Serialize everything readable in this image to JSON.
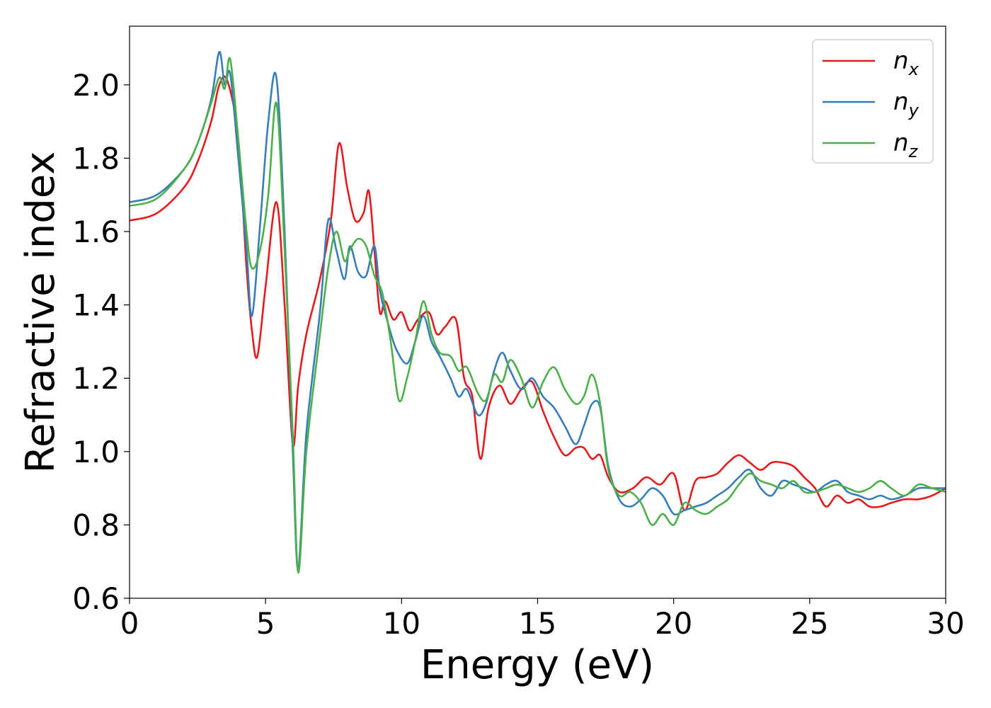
{
  "chart_data": {
    "type": "line",
    "title": "",
    "xlabel": "Energy (eV)",
    "ylabel": "Refractive index",
    "xlim": [
      0,
      30
    ],
    "ylim": [
      0.6,
      2.16
    ],
    "xticks": [
      0,
      5,
      10,
      15,
      20,
      25,
      30
    ],
    "xtick_labels": [
      "0",
      "5",
      "10",
      "15",
      "20",
      "25",
      "30"
    ],
    "yticks": [
      0.6,
      0.8,
      1.0,
      1.2,
      1.4,
      1.6,
      1.8,
      2.0
    ],
    "ytick_labels": [
      "0.6",
      "0.8",
      "1.0",
      "1.2",
      "1.4",
      "1.6",
      "1.8",
      "2.0"
    ],
    "grid": false,
    "legend_position": "top-right",
    "series": [
      {
        "name": "n",
        "subscript": "x",
        "color": "#e41a1c",
        "x": [
          0,
          1,
          2,
          2.5,
          3,
          3.3,
          3.6,
          4.0,
          4.3,
          4.5,
          4.7,
          5.0,
          5.4,
          5.7,
          6.0,
          6.2,
          6.5,
          7.0,
          7.4,
          7.7,
          8.0,
          8.3,
          8.6,
          8.8,
          9.0,
          9.2,
          9.4,
          9.7,
          10.0,
          10.3,
          10.6,
          11.0,
          11.3,
          11.6,
          12.0,
          12.3,
          12.6,
          12.9,
          13.2,
          13.6,
          14.0,
          14.4,
          14.8,
          15.2,
          15.6,
          16.0,
          16.4,
          16.7,
          17.0,
          17.3,
          17.6,
          18.0,
          18.5,
          19.0,
          19.5,
          20.0,
          20.4,
          20.8,
          21.2,
          21.6,
          22.0,
          22.4,
          22.8,
          23.2,
          23.6,
          24.0,
          24.4,
          24.8,
          25.2,
          25.6,
          26.0,
          26.4,
          26.8,
          27.2,
          27.6,
          28.0,
          28.5,
          29.0,
          29.5,
          30.0
        ],
        "y": [
          1.63,
          1.65,
          1.72,
          1.79,
          1.9,
          2.0,
          2.01,
          1.85,
          1.5,
          1.33,
          1.26,
          1.45,
          1.68,
          1.4,
          1.02,
          1.18,
          1.32,
          1.47,
          1.63,
          1.84,
          1.72,
          1.63,
          1.65,
          1.71,
          1.55,
          1.38,
          1.41,
          1.36,
          1.38,
          1.33,
          1.36,
          1.38,
          1.32,
          1.34,
          1.36,
          1.2,
          1.15,
          0.98,
          1.12,
          1.18,
          1.13,
          1.17,
          1.19,
          1.11,
          1.04,
          0.99,
          1.01,
          1.01,
          0.98,
          0.99,
          0.93,
          0.89,
          0.9,
          0.93,
          0.91,
          0.94,
          0.84,
          0.92,
          0.93,
          0.94,
          0.97,
          0.99,
          0.97,
          0.95,
          0.97,
          0.97,
          0.96,
          0.93,
          0.9,
          0.85,
          0.88,
          0.86,
          0.87,
          0.85,
          0.85,
          0.86,
          0.87,
          0.87,
          0.88,
          0.9
        ]
      },
      {
        "name": "n",
        "subscript": "y",
        "color": "#377eb8",
        "x": [
          0,
          1,
          2,
          2.5,
          3,
          3.3,
          3.5,
          3.7,
          4.0,
          4.3,
          4.5,
          4.8,
          5.1,
          5.4,
          5.7,
          6.0,
          6.2,
          6.5,
          7.0,
          7.3,
          7.6,
          7.9,
          8.1,
          8.4,
          8.7,
          9.0,
          9.2,
          9.5,
          9.8,
          10.2,
          10.5,
          10.8,
          11.1,
          11.4,
          11.8,
          12.1,
          12.4,
          12.8,
          13.1,
          13.4,
          13.7,
          14.0,
          14.4,
          14.8,
          15.2,
          15.6,
          16.0,
          16.4,
          16.7,
          17.0,
          17.3,
          17.6,
          18.0,
          18.4,
          18.8,
          19.2,
          19.6,
          20.0,
          20.4,
          20.8,
          21.2,
          21.6,
          22.0,
          22.4,
          22.8,
          23.2,
          23.6,
          24.0,
          24.4,
          24.8,
          25.2,
          25.6,
          26.0,
          26.4,
          26.8,
          27.2,
          27.6,
          28.0,
          28.5,
          29.0,
          29.5,
          30.0
        ],
        "y": [
          1.68,
          1.7,
          1.77,
          1.84,
          1.96,
          2.09,
          2.0,
          2.03,
          1.8,
          1.55,
          1.37,
          1.62,
          1.9,
          2.02,
          1.6,
          1.0,
          0.68,
          1.05,
          1.38,
          1.63,
          1.55,
          1.47,
          1.56,
          1.49,
          1.48,
          1.56,
          1.44,
          1.35,
          1.28,
          1.24,
          1.3,
          1.37,
          1.3,
          1.26,
          1.2,
          1.15,
          1.17,
          1.1,
          1.13,
          1.22,
          1.27,
          1.22,
          1.17,
          1.2,
          1.15,
          1.12,
          1.07,
          1.02,
          1.07,
          1.13,
          1.12,
          0.96,
          0.87,
          0.85,
          0.87,
          0.9,
          0.88,
          0.83,
          0.84,
          0.85,
          0.86,
          0.88,
          0.9,
          0.93,
          0.95,
          0.9,
          0.88,
          0.92,
          0.91,
          0.9,
          0.89,
          0.91,
          0.92,
          0.89,
          0.88,
          0.87,
          0.88,
          0.87,
          0.88,
          0.9,
          0.9,
          0.9
        ]
      },
      {
        "name": "n",
        "subscript": "z",
        "color": "#4daf4a",
        "x": [
          0,
          1,
          2,
          2.5,
          3,
          3.3,
          3.5,
          3.7,
          4.0,
          4.3,
          4.5,
          4.8,
          5.1,
          5.4,
          5.7,
          6.0,
          6.2,
          6.5,
          7.0,
          7.3,
          7.6,
          7.9,
          8.1,
          8.4,
          8.7,
          9.0,
          9.3,
          9.6,
          9.9,
          10.2,
          10.5,
          10.8,
          11.1,
          11.4,
          11.8,
          12.1,
          12.4,
          12.8,
          13.1,
          13.4,
          13.7,
          14.0,
          14.4,
          14.8,
          15.2,
          15.6,
          16.0,
          16.4,
          16.7,
          17.0,
          17.3,
          17.6,
          18.0,
          18.4,
          18.8,
          19.2,
          19.6,
          20.0,
          20.4,
          20.8,
          21.2,
          21.6,
          22.0,
          22.4,
          22.8,
          23.2,
          23.6,
          24.0,
          24.4,
          24.8,
          25.2,
          25.6,
          26.0,
          26.4,
          26.8,
          27.2,
          27.6,
          28.0,
          28.5,
          29.0,
          29.5,
          30.0
        ],
        "y": [
          1.67,
          1.69,
          1.77,
          1.84,
          1.95,
          2.02,
          1.99,
          2.07,
          1.85,
          1.6,
          1.5,
          1.55,
          1.7,
          1.95,
          1.55,
          1.05,
          0.67,
          1.0,
          1.32,
          1.5,
          1.6,
          1.52,
          1.55,
          1.58,
          1.56,
          1.48,
          1.43,
          1.3,
          1.14,
          1.2,
          1.3,
          1.41,
          1.32,
          1.27,
          1.26,
          1.22,
          1.23,
          1.16,
          1.14,
          1.21,
          1.19,
          1.25,
          1.2,
          1.12,
          1.19,
          1.23,
          1.17,
          1.13,
          1.15,
          1.21,
          1.13,
          0.95,
          0.88,
          0.89,
          0.86,
          0.8,
          0.83,
          0.8,
          0.86,
          0.84,
          0.83,
          0.85,
          0.87,
          0.91,
          0.94,
          0.92,
          0.91,
          0.9,
          0.92,
          0.89,
          0.89,
          0.9,
          0.91,
          0.9,
          0.89,
          0.9,
          0.92,
          0.9,
          0.88,
          0.91,
          0.9,
          0.89
        ]
      }
    ]
  }
}
